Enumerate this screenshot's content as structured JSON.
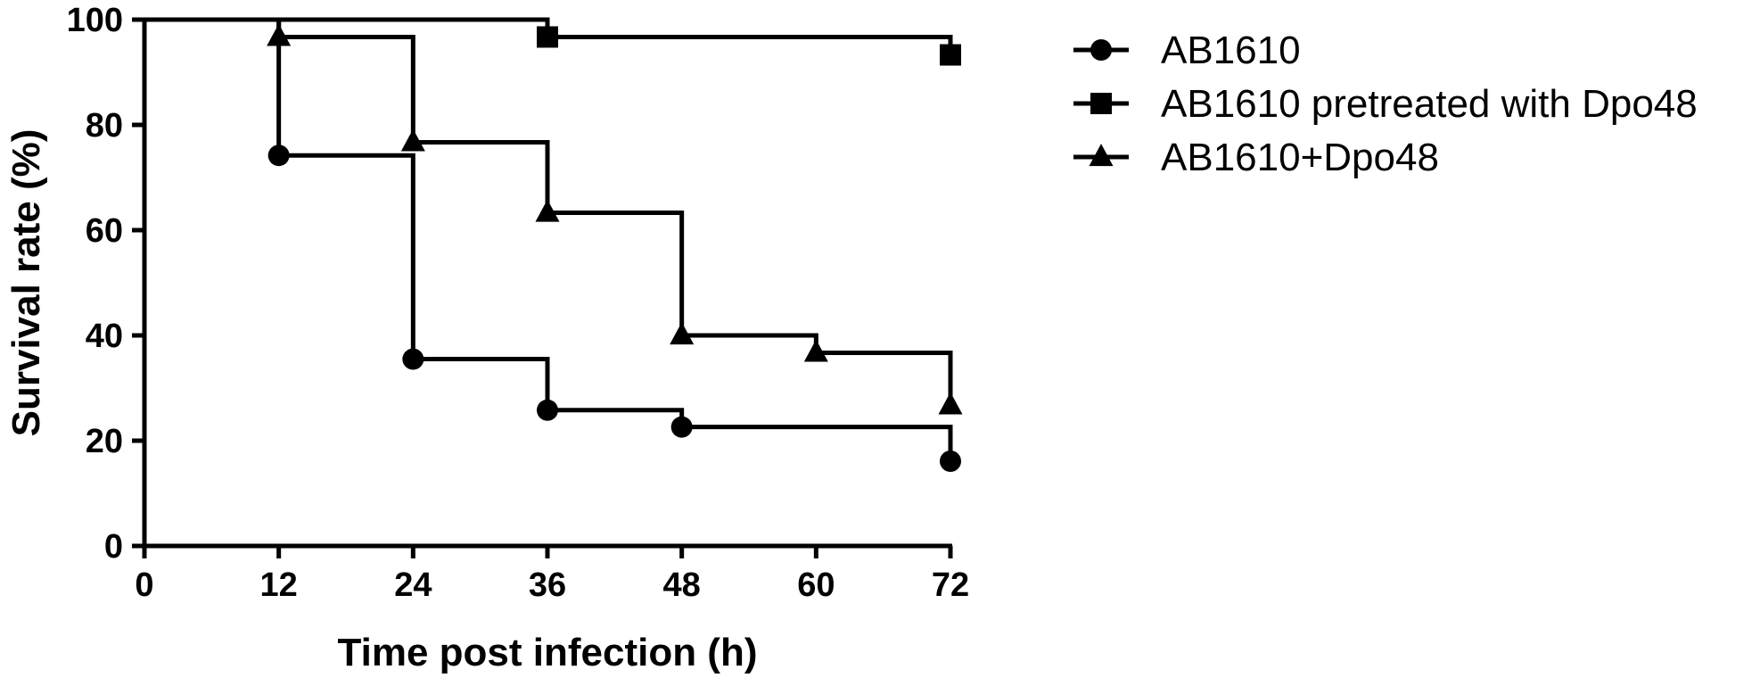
{
  "chart_data": {
    "type": "line",
    "subtype": "kaplan-meier step survival curve",
    "title": "",
    "xlabel": "Time post infection (h)",
    "ylabel": "Survival rate (%)",
    "xlim": [
      0,
      72
    ],
    "ylim": [
      0,
      100
    ],
    "xticks": [
      "0",
      "12",
      "24",
      "36",
      "48",
      "60",
      "72"
    ],
    "yticks": [
      "0",
      "20",
      "40",
      "60",
      "80",
      "100"
    ],
    "grid": false,
    "legend_position": "right",
    "line_color": "#000000",
    "series": [
      {
        "name": "AB1610",
        "marker": "circle",
        "x": [
          0,
          12,
          24,
          36,
          48,
          72
        ],
        "y": [
          100,
          74.2,
          35.5,
          25.8,
          22.6,
          16.1
        ]
      },
      {
        "name": "AB1610 pretreated with Dpo48",
        "marker": "square",
        "x": [
          0,
          36,
          72
        ],
        "y": [
          100,
          96.7,
          93.3
        ]
      },
      {
        "name": "AB1610+Dpo48",
        "marker": "triangle",
        "x": [
          0,
          12,
          24,
          36,
          48,
          60,
          72
        ],
        "y": [
          100,
          96.7,
          76.7,
          63.3,
          40,
          36.7,
          26.7
        ]
      }
    ]
  }
}
